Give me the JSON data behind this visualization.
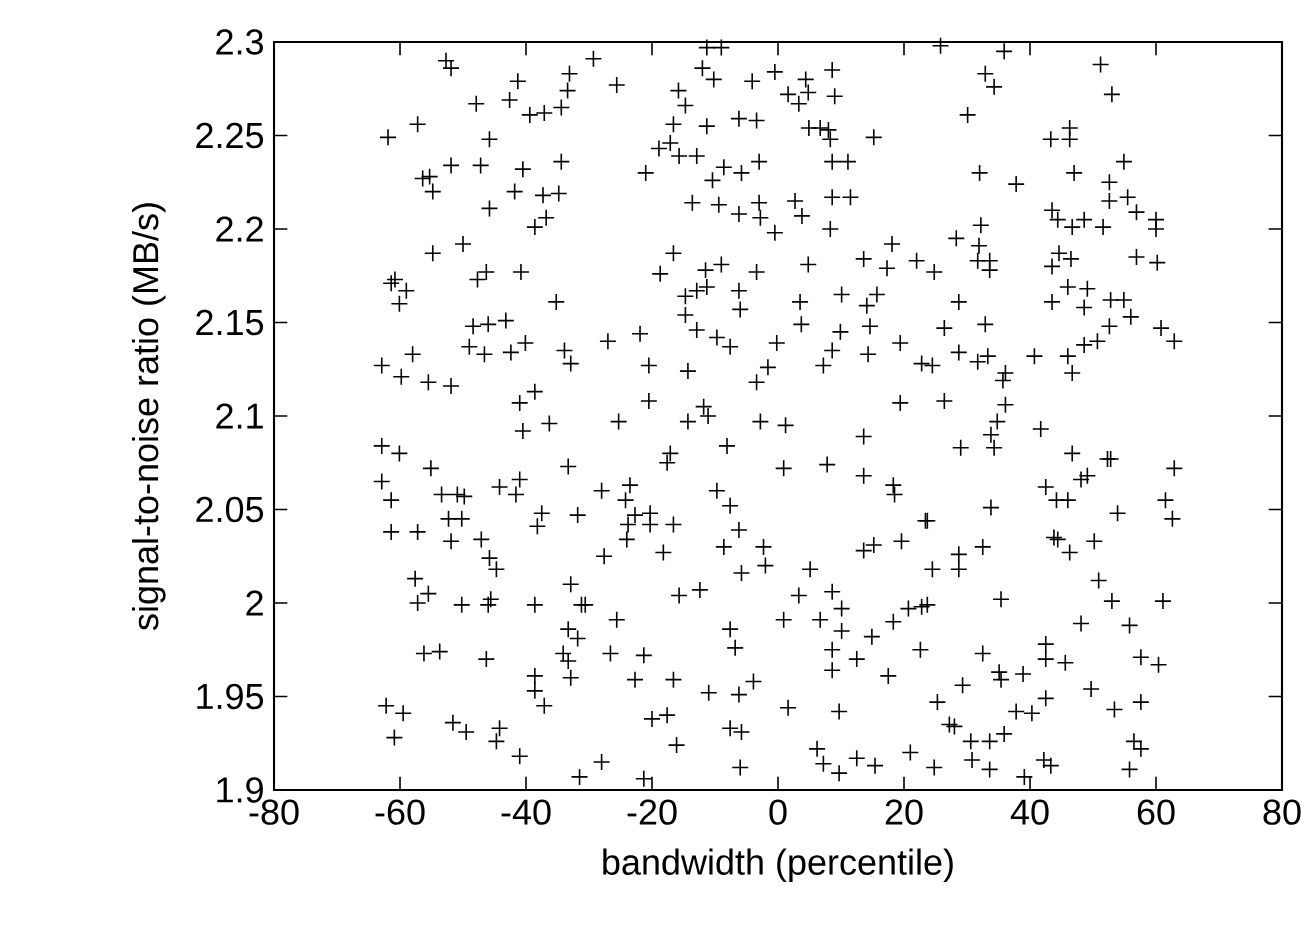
{
  "chart_data": {
    "type": "scatter",
    "xlabel": "bandwidth (percentile)",
    "ylabel": "signal-to-noise ratio (MB/s)",
    "xlim": [
      -80,
      80
    ],
    "ylim": [
      1.9,
      2.3
    ],
    "xticks": [
      -80,
      -60,
      -40,
      -20,
      0,
      20,
      40,
      60,
      80
    ],
    "yticks": [
      1.9,
      1.95,
      2,
      2.05,
      2.1,
      2.15,
      2.2,
      2.25,
      2.3
    ],
    "marker": "cross",
    "grid": false,
    "series": [
      {
        "color": "#000000",
        "x": [
          -52.7,
          -51.9,
          -33.1,
          -41.3,
          -33.4,
          -47.9,
          -42.6,
          -39.4,
          -37.1,
          -34.4,
          -61.9,
          -57.2,
          -45.8,
          -51.9,
          -47.2,
          -40.5,
          -34.4,
          -56.4,
          -55.3,
          -54.8,
          -41.8,
          -37.3,
          -34.8,
          -45.8,
          -38.6,
          -36.8,
          -50.0,
          -54.8,
          -60.8,
          -61.4,
          -59.0,
          -60.1,
          -47.7,
          -46.3,
          -40.8,
          -35.2,
          -48.4,
          -46.0,
          -43.2,
          -49.0,
          -46.6,
          -42.4,
          -40.1,
          -33.9,
          -32.9,
          -62.9,
          -59.8,
          -58.0,
          -55.5,
          -51.9,
          -41.0,
          -38.6,
          -29.3,
          -25.6,
          -11.3,
          -9.0,
          -12.0,
          -10.2,
          -4.1,
          -0.5,
          4.4,
          8.6,
          -15.8,
          -14.7,
          1.6,
          3.3,
          4.8,
          9.0,
          -16.6,
          -11.3,
          -6.2,
          -3.4,
          4.9,
          6.7,
          8.0,
          8.3,
          15.2,
          -18.9,
          -17.1,
          -15.7,
          -12.9,
          -21.0,
          -10.4,
          -8.6,
          -5.8,
          -3.0,
          8.6,
          11.1,
          -13.6,
          -9.4,
          -6.2,
          -3.0,
          -2.8,
          2.7,
          3.8,
          -0.5,
          8.3,
          8.6,
          11.5,
          18.1,
          -16.6,
          -18.7,
          -11.5,
          -9.0,
          -3.4,
          4.8,
          13.6,
          17.3,
          22.0,
          -14.7,
          -12.9,
          -11.3,
          -14.7,
          -6.2,
          -6.0,
          3.5,
          10.1,
          14.1,
          15.7,
          -12.9,
          -9.7,
          -7.6,
          -0.2,
          3.7,
          9.9,
          14.6,
          -27.0,
          -21.9,
          -20.5,
          -14.3,
          -3.4,
          -1.6,
          7.2,
          8.6,
          14.3,
          19.4,
          22.8,
          -20.5,
          -11.8,
          19.4,
          25.8,
          35.9,
          32.9,
          34.3,
          51.2,
          53.0,
          30.1,
          43.3,
          46.3,
          46.3,
          54.9,
          32.0,
          37.8,
          47.0,
          52.6,
          43.5,
          44.4,
          46.7,
          48.6,
          51.6,
          52.6,
          55.5,
          56.9,
          60.0,
          60.0,
          28.3,
          32.2,
          31.9,
          31.7,
          33.6,
          33.6,
          24.8,
          43.5,
          44.6,
          46.5,
          56.9,
          60.2,
          28.7,
          26.4,
          32.9,
          43.5,
          46.0,
          49.1,
          48.6,
          52.8,
          54.9,
          56.0,
          52.6,
          60.8,
          62.9,
          48.6,
          50.7,
          24.5,
          28.7,
          31.7,
          33.3,
          36.1,
          35.7,
          40.7,
          46.0,
          46.7,
          26.4,
          36.1,
          -36.3,
          -40.5,
          -62.9,
          -60.1,
          -55.1,
          -62.9,
          -61.4,
          -53.4,
          -50.9,
          -49.8,
          -44.2,
          -41.0,
          -41.6,
          -37.5,
          -38.2,
          -31.8,
          -33.3,
          -61.4,
          -57.2,
          -51.9,
          -52.3,
          -50.2,
          -47.1,
          -45.8,
          -44.7,
          -57.6,
          -55.5,
          -57.2,
          -50.2,
          -45.6,
          -46.0,
          -38.6,
          -32.9,
          -31.2,
          -56.2,
          -53.7,
          -46.3,
          -38.6,
          -38.6,
          -37.1,
          -33.3,
          -31.8,
          -34.1,
          -33.3,
          -32.9,
          -62.2,
          -59.5,
          -60.9,
          -51.6,
          -49.5,
          -44.2,
          -44.7,
          -41.0,
          -31.5,
          -25.3,
          -14.3,
          -11.1,
          -2.8,
          1.2,
          -17.1,
          -17.6,
          -8.1,
          0.9,
          7.8,
          13.6,
          13.6,
          18.3,
          18.5,
          -28.0,
          -23.5,
          -24.2,
          -23.8,
          -24.0,
          -22.7,
          -20.3,
          -20.3,
          -16.6,
          -9.7,
          -7.6,
          -6.2,
          -8.6,
          -2.3,
          -2.0,
          -5.8,
          -18.2,
          -27.6,
          -15.7,
          -12.4,
          3.3,
          5.1,
          8.6,
          10.1,
          6.7,
          10.1,
          0.9,
          13.6,
          15.2,
          19.6,
          23.4,
          20.7,
          22.8,
          -30.6,
          -25.6,
          -7.6,
          -6.8,
          -26.6,
          -21.3,
          -22.7,
          -16.6,
          -11.0,
          -6.2,
          -3.9,
          8.6,
          8.6,
          12.5,
          14.9,
          17.5,
          18.3,
          22.6,
          -20.0,
          -17.6,
          -16.1,
          -7.6,
          -5.8,
          1.6,
          9.7,
          -28.0,
          -21.3,
          -6.0,
          6.2,
          7.2,
          9.7,
          12.5,
          15.4,
          21.0,
          34.8,
          33.8,
          41.7,
          29.0,
          34.3,
          46.7,
          52.3,
          52.8,
          49.1,
          48.1,
          62.9,
          42.5,
          44.2,
          46.0,
          33.8,
          53.9,
          61.5,
          62.6,
          23.7,
          43.8,
          44.4,
          46.3,
          50.2,
          32.5,
          28.7,
          28.7,
          24.5,
          50.9,
          53.0,
          35.4,
          23.7,
          61.1,
          48.1,
          55.8,
          42.5,
          42.5,
          45.6,
          32.5,
          35.1,
          35.4,
          38.9,
          57.6,
          60.4,
          49.7,
          42.5,
          29.3,
          25.3,
          27.2,
          28.0,
          37.8,
          40.3,
          53.4,
          57.6,
          30.6,
          33.6,
          35.9,
          56.5,
          57.6,
          24.8,
          30.8,
          33.6,
          39.1,
          42.2,
          43.3,
          55.8
        ],
        "values": [
          2.29,
          2.286,
          2.283,
          2.279,
          2.274,
          2.267,
          2.269,
          2.261,
          2.262,
          2.265,
          2.249,
          2.256,
          2.248,
          2.234,
          2.234,
          2.232,
          2.236,
          2.227,
          2.228,
          2.22,
          2.22,
          2.218,
          2.219,
          2.211,
          2.201,
          2.206,
          2.192,
          2.187,
          2.173,
          2.171,
          2.167,
          2.16,
          2.173,
          2.177,
          2.177,
          2.161,
          2.148,
          2.149,
          2.151,
          2.137,
          2.133,
          2.134,
          2.139,
          2.135,
          2.128,
          2.127,
          2.121,
          2.133,
          2.118,
          2.116,
          2.107,
          2.113,
          2.291,
          2.277,
          2.297,
          2.297,
          2.286,
          2.28,
          2.279,
          2.284,
          2.28,
          2.285,
          2.274,
          2.266,
          2.272,
          2.267,
          2.273,
          2.271,
          2.256,
          2.255,
          2.259,
          2.258,
          2.254,
          2.254,
          2.253,
          2.248,
          2.249,
          2.243,
          2.246,
          2.239,
          2.239,
          2.23,
          2.226,
          2.233,
          2.23,
          2.236,
          2.236,
          2.236,
          2.214,
          2.213,
          2.208,
          2.214,
          2.206,
          2.215,
          2.207,
          2.198,
          2.2,
          2.217,
          2.217,
          2.192,
          2.187,
          2.176,
          2.178,
          2.181,
          2.177,
          2.181,
          2.184,
          2.179,
          2.183,
          2.164,
          2.167,
          2.169,
          2.154,
          2.167,
          2.157,
          2.161,
          2.165,
          2.159,
          2.165,
          2.146,
          2.142,
          2.137,
          2.139,
          2.149,
          2.145,
          2.148,
          2.14,
          2.144,
          2.127,
          2.124,
          2.118,
          2.126,
          2.127,
          2.135,
          2.133,
          2.139,
          2.128,
          2.108,
          2.105,
          2.107,
          2.298,
          2.295,
          2.283,
          2.276,
          2.288,
          2.272,
          2.261,
          2.248,
          2.254,
          2.248,
          2.236,
          2.23,
          2.224,
          2.23,
          2.225,
          2.21,
          2.205,
          2.201,
          2.205,
          2.201,
          2.215,
          2.217,
          2.209,
          2.205,
          2.2,
          2.195,
          2.202,
          2.191,
          2.183,
          2.183,
          2.178,
          2.177,
          2.18,
          2.187,
          2.184,
          2.185,
          2.182,
          2.161,
          2.147,
          2.149,
          2.161,
          2.169,
          2.168,
          2.158,
          2.162,
          2.162,
          2.153,
          2.148,
          2.147,
          2.14,
          2.138,
          2.14,
          2.127,
          2.134,
          2.129,
          2.132,
          2.123,
          2.119,
          2.132,
          2.132,
          2.123,
          2.108,
          2.106,
          2.096,
          2.092,
          2.084,
          2.08,
          2.072,
          2.065,
          2.055,
          2.058,
          2.058,
          2.057,
          2.062,
          2.066,
          2.058,
          2.048,
          2.041,
          2.047,
          2.073,
          2.038,
          2.038,
          2.033,
          2.045,
          2.045,
          2.034,
          2.024,
          2.018,
          2.013,
          2.005,
          2.0,
          1.999,
          2.002,
          1.999,
          1.999,
          2.01,
          1.999,
          1.973,
          1.974,
          1.97,
          1.961,
          1.953,
          1.945,
          1.986,
          1.981,
          1.973,
          1.969,
          1.96,
          1.945,
          1.941,
          1.928,
          1.936,
          1.931,
          1.933,
          1.926,
          1.918,
          1.907,
          2.097,
          2.097,
          2.1,
          2.097,
          2.095,
          2.08,
          2.075,
          2.084,
          2.072,
          2.074,
          2.089,
          2.068,
          2.063,
          2.058,
          2.06,
          2.063,
          2.055,
          2.042,
          2.034,
          2.047,
          2.048,
          2.042,
          2.042,
          2.06,
          2.052,
          2.039,
          2.03,
          2.03,
          2.02,
          2.016,
          2.027,
          2.025,
          2.004,
          2.007,
          2.004,
          2.018,
          2.006,
          1.997,
          1.991,
          1.985,
          1.991,
          2.028,
          2.031,
          2.033,
          2.044,
          1.997,
          1.998,
          1.999,
          1.991,
          1.986,
          1.976,
          1.973,
          1.972,
          1.959,
          1.959,
          1.952,
          1.951,
          1.958,
          1.975,
          1.964,
          1.97,
          1.982,
          1.961,
          1.99,
          1.975,
          1.938,
          1.94,
          1.924,
          1.933,
          1.931,
          1.944,
          1.942,
          1.915,
          1.906,
          1.912,
          1.922,
          1.914,
          1.909,
          1.917,
          1.913,
          1.92,
          2.097,
          2.09,
          2.093,
          2.083,
          2.083,
          2.08,
          2.077,
          2.077,
          2.068,
          2.066,
          2.072,
          2.062,
          2.055,
          2.055,
          2.051,
          2.048,
          2.055,
          2.045,
          2.044,
          2.035,
          2.034,
          2.027,
          2.033,
          2.03,
          2.026,
          2.018,
          2.018,
          2.012,
          2.001,
          2.002,
          1.999,
          2.001,
          1.989,
          1.988,
          1.978,
          1.97,
          1.968,
          1.973,
          1.963,
          1.959,
          1.962,
          1.971,
          1.967,
          1.954,
          1.949,
          1.956,
          1.947,
          1.935,
          1.934,
          1.942,
          1.941,
          1.943,
          1.947,
          1.926,
          1.926,
          1.93,
          1.926,
          1.922,
          1.912,
          1.916,
          1.911,
          1.907,
          1.916,
          1.913,
          1.911
        ]
      }
    ]
  }
}
